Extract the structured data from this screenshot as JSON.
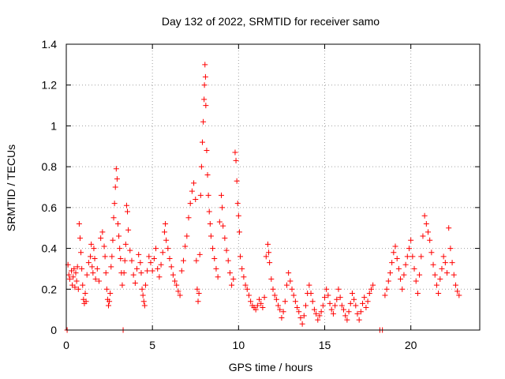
{
  "chart_data": {
    "type": "scatter",
    "title": "Day 132 of 2022, SRMTID for receiver samo",
    "xlabel": "GPS time / hours",
    "ylabel": "SRMTID / TECUs",
    "xlim": [
      0,
      24
    ],
    "ylim": [
      0,
      1.4
    ],
    "xticks": [
      0,
      5,
      10,
      15,
      20
    ],
    "xtick_labels": [
      "0",
      "5",
      "10",
      "15",
      "20"
    ],
    "yticks": [
      0,
      0.2,
      0.4,
      0.6,
      0.8,
      1,
      1.2,
      1.4
    ],
    "ytick_labels": [
      "0",
      "0.2",
      "0.4",
      "0.6",
      "0.8",
      "1",
      "1.2",
      "1.4"
    ],
    "grid": true,
    "marker": "plus",
    "color": "#ff0000",
    "series": [
      {
        "name": "SRMTID",
        "points": [
          [
            0.05,
            0.0
          ],
          [
            0.1,
            0.32
          ],
          [
            0.15,
            0.27
          ],
          [
            0.2,
            0.25
          ],
          [
            0.3,
            0.29
          ],
          [
            0.35,
            0.22
          ],
          [
            0.4,
            0.26
          ],
          [
            0.45,
            0.3
          ],
          [
            0.5,
            0.21
          ],
          [
            0.55,
            0.28
          ],
          [
            0.6,
            0.24
          ],
          [
            0.65,
            0.31
          ],
          [
            0.7,
            0.2
          ],
          [
            0.75,
            0.52
          ],
          [
            0.8,
            0.45
          ],
          [
            0.85,
            0.38
          ],
          [
            0.9,
            0.3
          ],
          [
            0.95,
            0.22
          ],
          [
            1.0,
            0.15
          ],
          [
            1.05,
            0.13
          ],
          [
            1.1,
            0.18
          ],
          [
            1.15,
            0.14
          ],
          [
            1.2,
            0.27
          ],
          [
            1.3,
            0.33
          ],
          [
            1.4,
            0.36
          ],
          [
            1.45,
            0.42
          ],
          [
            1.5,
            0.31
          ],
          [
            1.55,
            0.28
          ],
          [
            1.6,
            0.4
          ],
          [
            1.65,
            0.35
          ],
          [
            1.7,
            0.25
          ],
          [
            1.8,
            0.3
          ],
          [
            1.9,
            0.24
          ],
          [
            2.0,
            0.45
          ],
          [
            2.1,
            0.48
          ],
          [
            2.2,
            0.41
          ],
          [
            2.25,
            0.36
          ],
          [
            2.3,
            0.28
          ],
          [
            2.35,
            0.2
          ],
          [
            2.4,
            0.15
          ],
          [
            2.45,
            0.12
          ],
          [
            2.5,
            0.14
          ],
          [
            2.55,
            0.18
          ],
          [
            2.6,
            0.31
          ],
          [
            2.65,
            0.36
          ],
          [
            2.7,
            0.44
          ],
          [
            2.75,
            0.55
          ],
          [
            2.8,
            0.62
          ],
          [
            2.85,
            0.7
          ],
          [
            2.9,
            0.79
          ],
          [
            2.95,
            0.74
          ],
          [
            3.0,
            0.52
          ],
          [
            3.05,
            0.46
          ],
          [
            3.1,
            0.4
          ],
          [
            3.15,
            0.35
          ],
          [
            3.2,
            0.28
          ],
          [
            3.25,
            0.22
          ],
          [
            3.3,
            0.0
          ],
          [
            3.35,
            0.28
          ],
          [
            3.4,
            0.34
          ],
          [
            3.45,
            0.42
          ],
          [
            3.5,
            0.61
          ],
          [
            3.55,
            0.58
          ],
          [
            3.6,
            0.49
          ],
          [
            3.7,
            0.39
          ],
          [
            3.8,
            0.34
          ],
          [
            3.9,
            0.27
          ],
          [
            4.0,
            0.23
          ],
          [
            4.1,
            0.3
          ],
          [
            4.2,
            0.37
          ],
          [
            4.3,
            0.33
          ],
          [
            4.35,
            0.28
          ],
          [
            4.4,
            0.2
          ],
          [
            4.45,
            0.17
          ],
          [
            4.5,
            0.14
          ],
          [
            4.55,
            0.12
          ],
          [
            4.6,
            0.22
          ],
          [
            4.7,
            0.29
          ],
          [
            4.8,
            0.36
          ],
          [
            4.9,
            0.33
          ],
          [
            5.0,
            0.29
          ],
          [
            5.1,
            0.35
          ],
          [
            5.2,
            0.4
          ],
          [
            5.3,
            0.3
          ],
          [
            5.4,
            0.26
          ],
          [
            5.5,
            0.32
          ],
          [
            5.6,
            0.38
          ],
          [
            5.7,
            0.48
          ],
          [
            5.75,
            0.52
          ],
          [
            5.8,
            0.44
          ],
          [
            5.9,
            0.4
          ],
          [
            6.0,
            0.35
          ],
          [
            6.1,
            0.31
          ],
          [
            6.2,
            0.27
          ],
          [
            6.3,
            0.24
          ],
          [
            6.4,
            0.22
          ],
          [
            6.5,
            0.19
          ],
          [
            6.6,
            0.17
          ],
          [
            6.7,
            0.29
          ],
          [
            6.8,
            0.34
          ],
          [
            6.9,
            0.41
          ],
          [
            7.0,
            0.46
          ],
          [
            7.1,
            0.55
          ],
          [
            7.2,
            0.62
          ],
          [
            7.3,
            0.68
          ],
          [
            7.4,
            0.72
          ],
          [
            7.5,
            0.64
          ],
          [
            7.55,
            0.34
          ],
          [
            7.6,
            0.2
          ],
          [
            7.65,
            0.14
          ],
          [
            7.7,
            0.18
          ],
          [
            7.75,
            0.37
          ],
          [
            7.8,
            0.66
          ],
          [
            7.85,
            0.8
          ],
          [
            7.9,
            0.92
          ],
          [
            7.95,
            1.02
          ],
          [
            8.0,
            1.13
          ],
          [
            8.02,
            1.2
          ],
          [
            8.05,
            1.3
          ],
          [
            8.08,
            1.24
          ],
          [
            8.1,
            1.1
          ],
          [
            8.15,
            0.88
          ],
          [
            8.2,
            0.76
          ],
          [
            8.25,
            0.66
          ],
          [
            8.3,
            0.58
          ],
          [
            8.35,
            0.52
          ],
          [
            8.4,
            0.46
          ],
          [
            8.5,
            0.4
          ],
          [
            8.6,
            0.35
          ],
          [
            8.7,
            0.3
          ],
          [
            8.8,
            0.26
          ],
          [
            8.9,
            0.53
          ],
          [
            9.0,
            0.66
          ],
          [
            9.05,
            0.6
          ],
          [
            9.1,
            0.51
          ],
          [
            9.2,
            0.45
          ],
          [
            9.3,
            0.39
          ],
          [
            9.4,
            0.34
          ],
          [
            9.5,
            0.28
          ],
          [
            9.6,
            0.22
          ],
          [
            9.7,
            0.25
          ],
          [
            9.8,
            0.87
          ],
          [
            9.85,
            0.83
          ],
          [
            9.9,
            0.73
          ],
          [
            9.95,
            0.62
          ],
          [
            10.0,
            0.56
          ],
          [
            10.05,
            0.48
          ],
          [
            10.1,
            0.36
          ],
          [
            10.2,
            0.3
          ],
          [
            10.3,
            0.26
          ],
          [
            10.4,
            0.22
          ],
          [
            10.5,
            0.2
          ],
          [
            10.6,
            0.17
          ],
          [
            10.7,
            0.14
          ],
          [
            10.8,
            0.12
          ],
          [
            10.9,
            0.11
          ],
          [
            11.0,
            0.1
          ],
          [
            11.1,
            0.12
          ],
          [
            11.2,
            0.15
          ],
          [
            11.3,
            0.13
          ],
          [
            11.4,
            0.11
          ],
          [
            11.5,
            0.16
          ],
          [
            11.6,
            0.36
          ],
          [
            11.7,
            0.42
          ],
          [
            11.75,
            0.38
          ],
          [
            11.8,
            0.33
          ],
          [
            11.9,
            0.25
          ],
          [
            12.0,
            0.2
          ],
          [
            12.1,
            0.17
          ],
          [
            12.2,
            0.15
          ],
          [
            12.3,
            0.12
          ],
          [
            12.4,
            0.1
          ],
          [
            12.5,
            0.06
          ],
          [
            12.6,
            0.09
          ],
          [
            12.7,
            0.14
          ],
          [
            12.8,
            0.22
          ],
          [
            12.9,
            0.28
          ],
          [
            13.0,
            0.24
          ],
          [
            13.1,
            0.2
          ],
          [
            13.2,
            0.17
          ],
          [
            13.3,
            0.14
          ],
          [
            13.4,
            0.11
          ],
          [
            13.5,
            0.09
          ],
          [
            13.6,
            0.06
          ],
          [
            13.7,
            0.03
          ],
          [
            13.8,
            0.07
          ],
          [
            13.9,
            0.12
          ],
          [
            14.0,
            0.18
          ],
          [
            14.1,
            0.22
          ],
          [
            14.2,
            0.18
          ],
          [
            14.3,
            0.14
          ],
          [
            14.4,
            0.1
          ],
          [
            14.5,
            0.08
          ],
          [
            14.6,
            0.05
          ],
          [
            14.7,
            0.07
          ],
          [
            14.8,
            0.09
          ],
          [
            14.9,
            0.12
          ],
          [
            15.0,
            0.16
          ],
          [
            15.1,
            0.2
          ],
          [
            15.2,
            0.17
          ],
          [
            15.3,
            0.13
          ],
          [
            15.4,
            0.1
          ],
          [
            15.5,
            0.08
          ],
          [
            15.6,
            0.12
          ],
          [
            15.7,
            0.15
          ],
          [
            15.8,
            0.2
          ],
          [
            15.9,
            0.16
          ],
          [
            16.0,
            0.12
          ],
          [
            16.1,
            0.1
          ],
          [
            16.2,
            0.07
          ],
          [
            16.3,
            0.05
          ],
          [
            16.4,
            0.09
          ],
          [
            16.5,
            0.13
          ],
          [
            16.6,
            0.18
          ],
          [
            16.7,
            0.15
          ],
          [
            16.8,
            0.12
          ],
          [
            16.9,
            0.08
          ],
          [
            17.0,
            0.05
          ],
          [
            17.1,
            0.09
          ],
          [
            17.2,
            0.13
          ],
          [
            17.3,
            0.16
          ],
          [
            17.4,
            0.11
          ],
          [
            17.5,
            0.14
          ],
          [
            17.6,
            0.18
          ],
          [
            17.7,
            0.2
          ],
          [
            17.8,
            0.22
          ],
          [
            18.2,
            0.0
          ],
          [
            18.35,
            0.0
          ],
          [
            18.5,
            0.17
          ],
          [
            18.6,
            0.2
          ],
          [
            18.7,
            0.24
          ],
          [
            18.8,
            0.28
          ],
          [
            18.9,
            0.33
          ],
          [
            19.0,
            0.38
          ],
          [
            19.1,
            0.41
          ],
          [
            19.2,
            0.35
          ],
          [
            19.3,
            0.3
          ],
          [
            19.4,
            0.25
          ],
          [
            19.5,
            0.2
          ],
          [
            19.6,
            0.27
          ],
          [
            19.7,
            0.32
          ],
          [
            19.8,
            0.36
          ],
          [
            19.9,
            0.4
          ],
          [
            20.0,
            0.44
          ],
          [
            20.1,
            0.36
          ],
          [
            20.2,
            0.3
          ],
          [
            20.3,
            0.24
          ],
          [
            20.4,
            0.18
          ],
          [
            20.5,
            0.27
          ],
          [
            20.6,
            0.36
          ],
          [
            20.7,
            0.46
          ],
          [
            20.8,
            0.56
          ],
          [
            20.9,
            0.52
          ],
          [
            21.0,
            0.48
          ],
          [
            21.1,
            0.44
          ],
          [
            21.2,
            0.38
          ],
          [
            21.3,
            0.32
          ],
          [
            21.4,
            0.27
          ],
          [
            21.5,
            0.22
          ],
          [
            21.6,
            0.18
          ],
          [
            21.7,
            0.25
          ],
          [
            21.8,
            0.3
          ],
          [
            21.9,
            0.36
          ],
          [
            22.0,
            0.33
          ],
          [
            22.1,
            0.28
          ],
          [
            22.2,
            0.5
          ],
          [
            22.3,
            0.4
          ],
          [
            22.4,
            0.33
          ],
          [
            22.5,
            0.27
          ],
          [
            22.6,
            0.22
          ],
          [
            22.7,
            0.19
          ],
          [
            22.8,
            0.17
          ]
        ]
      }
    ]
  }
}
